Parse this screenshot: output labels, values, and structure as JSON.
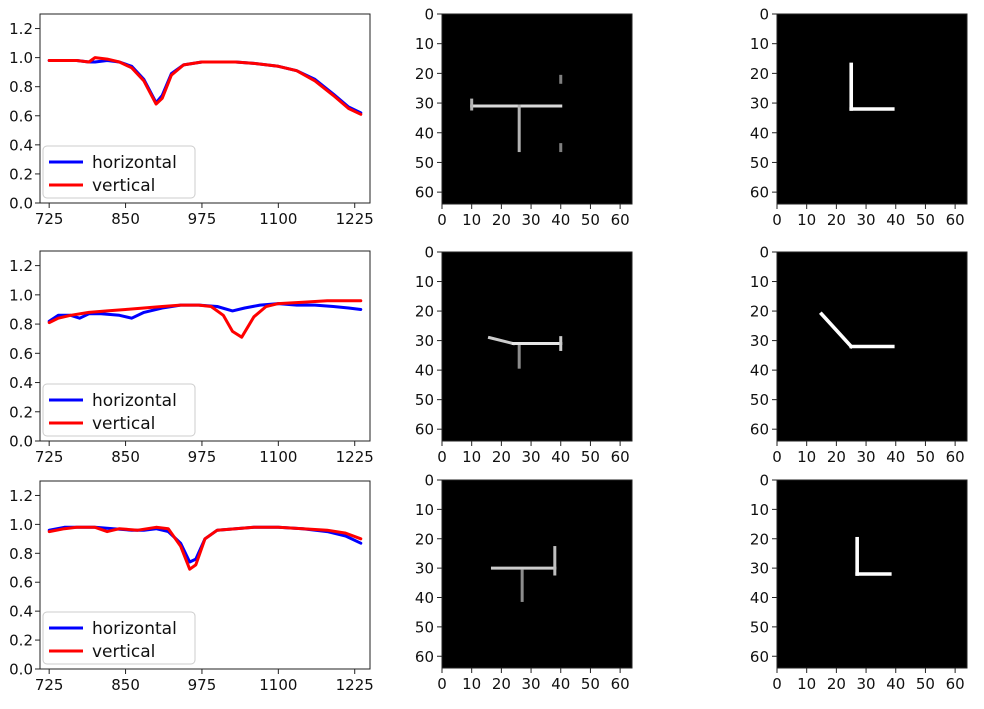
{
  "chart_data": [
    {
      "type": "line",
      "xticks": [
        "725",
        "850",
        "975",
        "1100",
        "1225"
      ],
      "yticks": [
        "0.0",
        "0.2",
        "0.4",
        "0.6",
        "0.8",
        "1.0",
        "1.2"
      ],
      "xlim": [
        710,
        1250
      ],
      "ylim": [
        0,
        1.3
      ],
      "legend": "lower-left",
      "series": [
        {
          "name": "horizontal",
          "color": "#0000ff",
          "x": [
            725,
            750,
            770,
            790,
            800,
            820,
            840,
            860,
            880,
            900,
            910,
            925,
            945,
            975,
            1000,
            1030,
            1060,
            1100,
            1130,
            1160,
            1190,
            1215,
            1235
          ],
          "y": [
            0.98,
            0.98,
            0.98,
            0.97,
            0.97,
            0.98,
            0.97,
            0.94,
            0.85,
            0.69,
            0.74,
            0.89,
            0.95,
            0.97,
            0.97,
            0.97,
            0.96,
            0.94,
            0.91,
            0.85,
            0.75,
            0.66,
            0.62
          ]
        },
        {
          "name": "vertical",
          "color": "#ff0000",
          "x": [
            725,
            750,
            770,
            790,
            800,
            820,
            840,
            860,
            880,
            900,
            910,
            925,
            945,
            975,
            1000,
            1030,
            1060,
            1100,
            1130,
            1160,
            1190,
            1215,
            1235
          ],
          "y": [
            0.98,
            0.98,
            0.98,
            0.97,
            1.0,
            0.99,
            0.97,
            0.93,
            0.84,
            0.68,
            0.72,
            0.88,
            0.95,
            0.97,
            0.97,
            0.97,
            0.96,
            0.94,
            0.91,
            0.84,
            0.74,
            0.65,
            0.61
          ]
        }
      ]
    },
    {
      "type": "line",
      "xticks": [
        "725",
        "850",
        "975",
        "1100",
        "1225"
      ],
      "yticks": [
        "0.0",
        "0.2",
        "0.4",
        "0.6",
        "0.8",
        "1.0",
        "1.2"
      ],
      "xlim": [
        710,
        1250
      ],
      "ylim": [
        0,
        1.3
      ],
      "legend": "lower-left",
      "series": [
        {
          "name": "horizontal",
          "color": "#0000ff",
          "x": [
            725,
            740,
            760,
            775,
            790,
            810,
            840,
            860,
            880,
            910,
            940,
            970,
            1000,
            1025,
            1045,
            1070,
            1100,
            1130,
            1160,
            1190,
            1215,
            1235
          ],
          "y": [
            0.82,
            0.86,
            0.86,
            0.84,
            0.87,
            0.87,
            0.86,
            0.84,
            0.88,
            0.91,
            0.93,
            0.93,
            0.92,
            0.89,
            0.91,
            0.93,
            0.94,
            0.93,
            0.93,
            0.92,
            0.91,
            0.9
          ]
        },
        {
          "name": "vertical",
          "color": "#ff0000",
          "x": [
            725,
            740,
            760,
            790,
            820,
            850,
            880,
            910,
            940,
            970,
            990,
            1010,
            1025,
            1040,
            1060,
            1080,
            1100,
            1140,
            1180,
            1235
          ],
          "y": [
            0.81,
            0.84,
            0.86,
            0.88,
            0.89,
            0.9,
            0.91,
            0.92,
            0.93,
            0.93,
            0.92,
            0.86,
            0.75,
            0.71,
            0.85,
            0.92,
            0.94,
            0.95,
            0.96,
            0.96
          ]
        }
      ]
    },
    {
      "type": "line",
      "xticks": [
        "725",
        "850",
        "975",
        "1100",
        "1225"
      ],
      "yticks": [
        "0.0",
        "0.2",
        "0.4",
        "0.6",
        "0.8",
        "1.0",
        "1.2"
      ],
      "xlim": [
        710,
        1250
      ],
      "ylim": [
        0,
        1.3
      ],
      "legend": "lower-left",
      "series": [
        {
          "name": "horizontal",
          "color": "#0000ff",
          "x": [
            725,
            750,
            770,
            800,
            830,
            860,
            880,
            900,
            920,
            940,
            955,
            965,
            980,
            1000,
            1030,
            1060,
            1100,
            1140,
            1180,
            1210,
            1235
          ],
          "y": [
            0.96,
            0.98,
            0.98,
            0.98,
            0.97,
            0.96,
            0.96,
            0.97,
            0.95,
            0.87,
            0.74,
            0.76,
            0.9,
            0.96,
            0.97,
            0.98,
            0.98,
            0.97,
            0.95,
            0.92,
            0.87
          ]
        },
        {
          "name": "vertical",
          "color": "#ff0000",
          "x": [
            725,
            750,
            770,
            800,
            820,
            840,
            870,
            900,
            920,
            940,
            955,
            965,
            980,
            1000,
            1030,
            1060,
            1100,
            1140,
            1180,
            1210,
            1235
          ],
          "y": [
            0.95,
            0.97,
            0.98,
            0.98,
            0.95,
            0.97,
            0.96,
            0.98,
            0.97,
            0.85,
            0.69,
            0.72,
            0.9,
            0.96,
            0.97,
            0.98,
            0.98,
            0.97,
            0.96,
            0.94,
            0.9
          ]
        }
      ]
    }
  ],
  "image_panels": {
    "ticks": [
      "0",
      "10",
      "20",
      "30",
      "40",
      "50",
      "60"
    ],
    "extent": [
      0,
      64
    ],
    "grayscale": [
      {
        "segments": [
          {
            "from": [
              10,
              31
            ],
            "to": [
              40,
              31
            ],
            "intensity": 0.85
          },
          {
            "from": [
              26,
              31
            ],
            "to": [
              26,
              46
            ],
            "intensity": 0.7
          },
          {
            "from": [
              10,
              29
            ],
            "to": [
              10,
              32
            ],
            "intensity": 0.7
          },
          {
            "from": [
              40,
              21
            ],
            "to": [
              40,
              23
            ],
            "intensity": 0.5
          },
          {
            "from": [
              40,
              44
            ],
            "to": [
              40,
              46
            ],
            "intensity": 0.5
          }
        ]
      },
      {
        "segments": [
          {
            "from": [
              16,
              29
            ],
            "to": [
              24,
              31
            ],
            "intensity": 0.8
          },
          {
            "from": [
              24,
              31
            ],
            "to": [
              40,
              31
            ],
            "intensity": 0.9
          },
          {
            "from": [
              40,
              29
            ],
            "to": [
              40,
              33
            ],
            "intensity": 0.8
          },
          {
            "from": [
              26,
              32
            ],
            "to": [
              26,
              39
            ],
            "intensity": 0.55
          }
        ]
      },
      {
        "segments": [
          {
            "from": [
              17,
              30
            ],
            "to": [
              38,
              30
            ],
            "intensity": 0.8
          },
          {
            "from": [
              38,
              23
            ],
            "to": [
              38,
              32
            ],
            "intensity": 0.75
          },
          {
            "from": [
              27,
              31
            ],
            "to": [
              27,
              41
            ],
            "intensity": 0.55
          }
        ]
      }
    ],
    "binary": [
      {
        "segments": [
          {
            "from": [
              25,
              17
            ],
            "to": [
              25,
              32
            ]
          },
          {
            "from": [
              25,
              32
            ],
            "to": [
              39,
              32
            ]
          }
        ]
      },
      {
        "segments": [
          {
            "from": [
              15,
              21
            ],
            "to": [
              25,
              32
            ]
          },
          {
            "from": [
              25,
              32
            ],
            "to": [
              39,
              32
            ]
          }
        ]
      },
      {
        "segments": [
          {
            "from": [
              27,
              20
            ],
            "to": [
              27,
              32
            ]
          },
          {
            "from": [
              27,
              32
            ],
            "to": [
              38,
              32
            ]
          }
        ]
      }
    ]
  }
}
